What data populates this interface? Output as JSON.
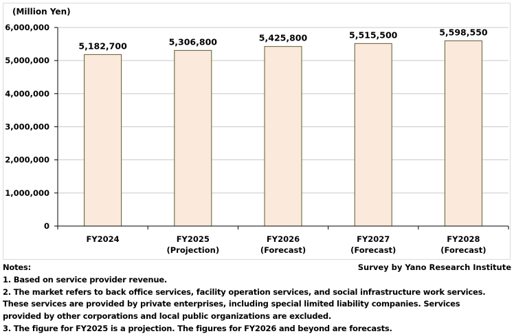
{
  "chart_data": {
    "type": "bar",
    "categories": [
      [
        "FY2024"
      ],
      [
        "FY2025",
        "(Projection)"
      ],
      [
        "FY2026",
        "(Forecast)"
      ],
      [
        "FY2027",
        "(Forecast)"
      ],
      [
        "FY2028",
        "(Forecast)"
      ]
    ],
    "values": [
      5182700,
      5306800,
      5425800,
      5515500,
      5598550
    ],
    "data_labels": [
      "5,182,700",
      "5,306,800",
      "5,425,800",
      "5,515,500",
      "5,598,550"
    ],
    "ylabel": "(Million Yen)",
    "ylim": [
      0,
      6000000
    ],
    "yticks": [
      0,
      1000000,
      2000000,
      3000000,
      4000000,
      5000000,
      6000000
    ],
    "ytick_labels": [
      "0",
      "1,000,000",
      "2,000,000",
      "3,000,000",
      "4,000,000",
      "5,000,000",
      "6,000,000"
    ],
    "grid": true,
    "colors": {
      "bar_fill": "#fbe9db",
      "bar_stroke": "#5b5a2c",
      "grid": "#c8c8c8"
    }
  },
  "notes": {
    "heading": "Notes:",
    "source": "Survey by Yano Research Institute",
    "lines": [
      "1. Based on service provider revenue.",
      "2. The market refers to back office services, facility operation services, and social infrastructure work services.",
      "These services are provided by private enterprises, including special limited liability companies. Services",
      "provided by other corporations and local public organizations are excluded.",
      "3. The figure for FY2025 is a projection. The figures for FY2026 and beyond are forecasts."
    ]
  }
}
